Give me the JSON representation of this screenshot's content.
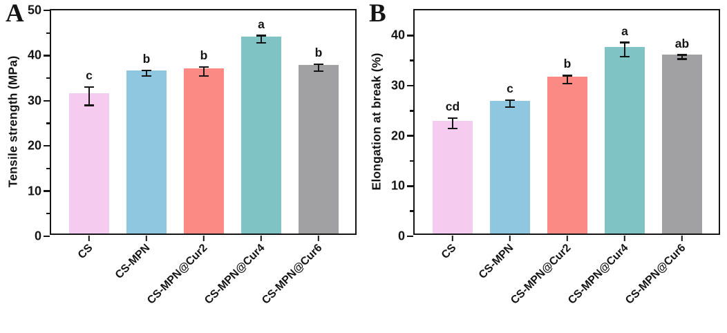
{
  "colors": {
    "axis": "#141414",
    "background": "#ffffff",
    "bar_pink": "#F6CBF0",
    "bar_blue": "#8FC7E0",
    "bar_red": "#FB8A84",
    "bar_teal": "#80C3C5",
    "bar_gray": "#A1A0A3"
  },
  "chart_data": [
    {
      "type": "bar",
      "panel_label": "A",
      "title": "",
      "xlabel": "",
      "ylabel": "Tensile strength (MPa)",
      "categories": [
        "CS",
        "CS-MPN",
        "CS-MPN@Cur2",
        "CS-MPN@Cur4",
        "CS-MPN@Cur6"
      ],
      "values": [
        31.0,
        36.1,
        36.5,
        43.6,
        37.3
      ],
      "errors": [
        2.0,
        0.6,
        1.0,
        0.8,
        0.8
      ],
      "sig_labels": [
        "c",
        "b",
        "b",
        "a",
        "b"
      ],
      "bar_colors": [
        "#F6CBF0",
        "#8FC7E0",
        "#FB8A84",
        "#80C3C5",
        "#A1A0A3"
      ],
      "ylim": [
        0,
        50
      ],
      "ytick_labels": [
        "0",
        "10",
        "20",
        "30",
        "40",
        "50"
      ],
      "ytick_major": 10,
      "ytick_minor": 5,
      "grid": false,
      "legend": "none",
      "error_bars": true
    },
    {
      "type": "bar",
      "panel_label": "B",
      "title": "",
      "xlabel": "",
      "ylabel": "Elongation at break (%)",
      "categories": [
        "CS",
        "CS-MPN",
        "CS-MPN@Cur2",
        "CS-MPN@Cur4",
        "CS-MPN@Cur6"
      ],
      "values": [
        22.5,
        26.4,
        31.2,
        37.2,
        35.7
      ],
      "errors": [
        1.0,
        0.7,
        0.8,
        1.4,
        0.4
      ],
      "sig_labels": [
        "cd",
        "c",
        "b",
        "a",
        "ab"
      ],
      "bar_colors": [
        "#F6CBF0",
        "#8FC7E0",
        "#FB8A84",
        "#80C3C5",
        "#A1A0A3"
      ],
      "ylim": [
        0,
        45
      ],
      "ytick_labels": [
        "0",
        "10",
        "20",
        "30",
        "40"
      ],
      "ytick_major": 10,
      "ytick_minor": 5,
      "grid": false,
      "legend": "none",
      "error_bars": true
    }
  ]
}
